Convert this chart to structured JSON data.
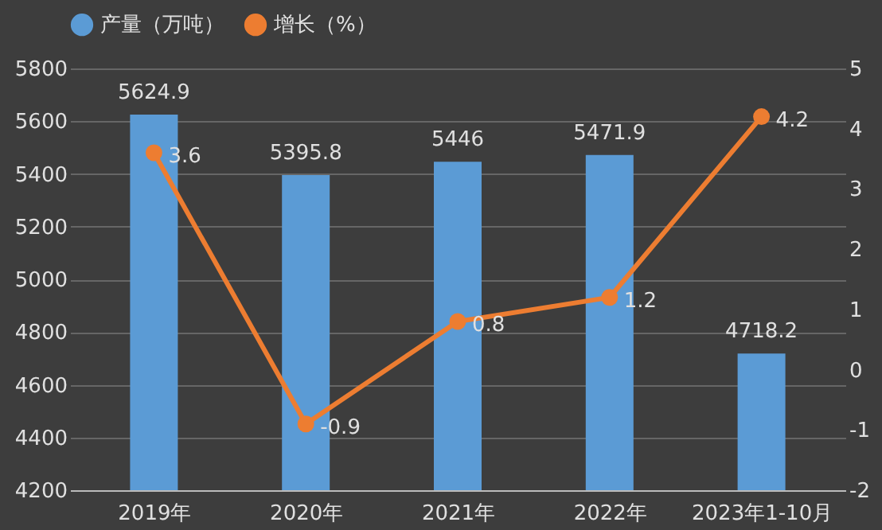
{
  "chart_data": {
    "type": "bar",
    "categories": [
      "2019年",
      "2020年",
      "2021年",
      "2022年",
      "2023年1-10月"
    ],
    "series": [
      {
        "name": "产量（万吨）",
        "color": "#5b9bd5",
        "values": [
          5624.9,
          5395.8,
          5446,
          5471.9,
          4718.2
        ]
      },
      {
        "name": "增长（%）",
        "type": "line",
        "axis": "y2",
        "color": "#ed7d31",
        "values": [
          3.6,
          -0.9,
          0.8,
          1.2,
          4.2
        ]
      }
    ],
    "ylim": [
      4200,
      5800
    ],
    "yticks": [
      4200,
      4400,
      4600,
      4800,
      5000,
      5200,
      5400,
      5600,
      5800
    ],
    "y2lim": [
      -2,
      5
    ],
    "y2ticks": [
      -2,
      -1,
      0,
      1,
      2,
      3,
      4,
      5
    ],
    "data_labels": true,
    "grid": "y",
    "legend": "top",
    "marker": "circle"
  }
}
